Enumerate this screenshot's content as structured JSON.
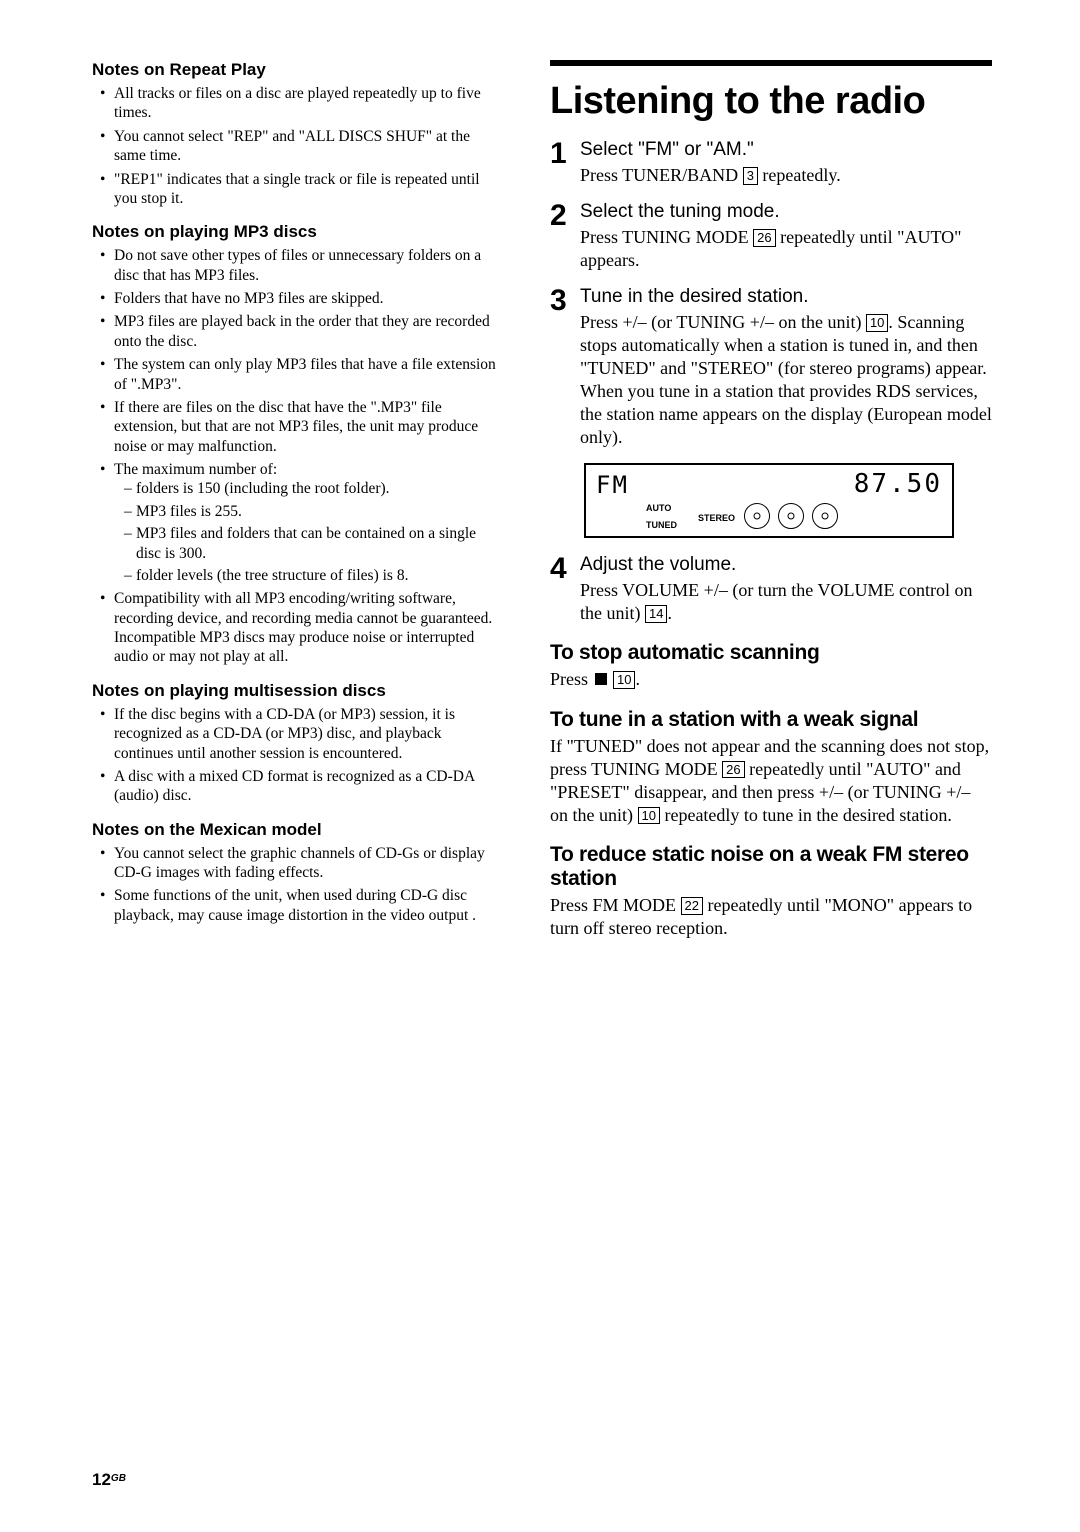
{
  "pageNum": "12",
  "pageLang": "GB",
  "left": {
    "h1": "Notes on Repeat Play",
    "h1_bullets": [
      "All tracks or files on a disc are played repeatedly up to five times.",
      "You cannot select \"REP\" and \"ALL DISCS SHUF\" at the same time.",
      "\"REP1\" indicates that a single track or file is repeated until you stop it."
    ],
    "h2": "Notes on playing MP3 discs",
    "h2_bullets": [
      "Do not save other types of files or unnecessary folders on a disc that has MP3 files.",
      "Folders that have no MP3 files are skipped.",
      "MP3 files are played back in the order that they are recorded onto the disc.",
      "The system can only play MP3 files that have a file extension of \".MP3\".",
      "If there are files on the disc that have the \".MP3\" file extension, but that are not MP3 files, the unit may produce noise or may malfunction.",
      "The maximum number of:"
    ],
    "h2_sub": [
      "folders is 150 (including the root folder).",
      "MP3 files is 255.",
      "MP3 files and folders that can be contained on a single disc is 300.",
      "folder levels (the tree structure of files) is 8."
    ],
    "h2_last": "Compatibility with all MP3 encoding/writing software, recording device, and recording media cannot be guaranteed. Incompatible MP3 discs may produce noise or interrupted audio or may not play at all.",
    "h3": "Notes on playing multisession discs",
    "h3_bullets": [
      "If the disc begins with a CD-DA (or MP3) session, it is recognized as a CD-DA (or MP3) disc, and playback continues until another session is encountered.",
      "A disc with a mixed CD format is recognized as a CD-DA (audio) disc."
    ],
    "h4": "Notes on the Mexican model",
    "h4_bullets": [
      "You cannot select the graphic channels of CD-Gs or display CD-G images with fading effects.",
      "Some functions of the unit, when used during CD-G disc playback, may cause image distortion in the video output ."
    ]
  },
  "right": {
    "title": "Listening to the radio",
    "steps": [
      {
        "num": "1",
        "title": "Select \"FM\" or \"AM.\"",
        "desc_pre": "Press TUNER/BAND ",
        "key": "3",
        "desc_post": " repeatedly."
      },
      {
        "num": "2",
        "title": "Select the tuning mode.",
        "desc_pre": "Press TUNING MODE ",
        "key": "26",
        "desc_post": " repeatedly until \"AUTO\" appears."
      }
    ],
    "step3": {
      "num": "3",
      "title": "Tune in the desired station.",
      "desc_a": "Press +/– (or TUNING +/– on the unit) ",
      "key_a": "10",
      "desc_b": ". Scanning stops automatically when a station is tuned in, and then \"TUNED\" and \"STEREO\" (for stereo programs) appear. When you tune in a station that provides RDS services, the station name appears on the display (European model only)."
    },
    "display": {
      "fm": "FM",
      "freq": "87.50",
      "auto": "AUTO",
      "tuned": "TUNED",
      "stereo": "STEREO"
    },
    "step4": {
      "num": "4",
      "title": "Adjust the volume.",
      "desc_a": "Press VOLUME +/– (or turn the VOLUME control on the unit) ",
      "key": "14",
      "desc_b": "."
    },
    "sub1": {
      "head": "To stop automatic scanning",
      "pre": "Press ",
      "key": "10",
      "post": "."
    },
    "sub2": {
      "head": "To tune in a station with a weak signal",
      "pre": "If \"TUNED\" does not appear and the scanning does not stop, press TUNING MODE ",
      "key1": "26",
      "mid": " repeatedly until \"AUTO\" and \"PRESET\" disappear, and then press +/– (or TUNING +/– on the unit) ",
      "key2": "10",
      "post": " repeatedly to tune in the desired station."
    },
    "sub3": {
      "head": "To reduce static noise on a weak FM stereo station",
      "pre": "Press FM MODE ",
      "key": "22",
      "post": " repeatedly until \"MONO\" appears to turn off stereo reception."
    }
  }
}
